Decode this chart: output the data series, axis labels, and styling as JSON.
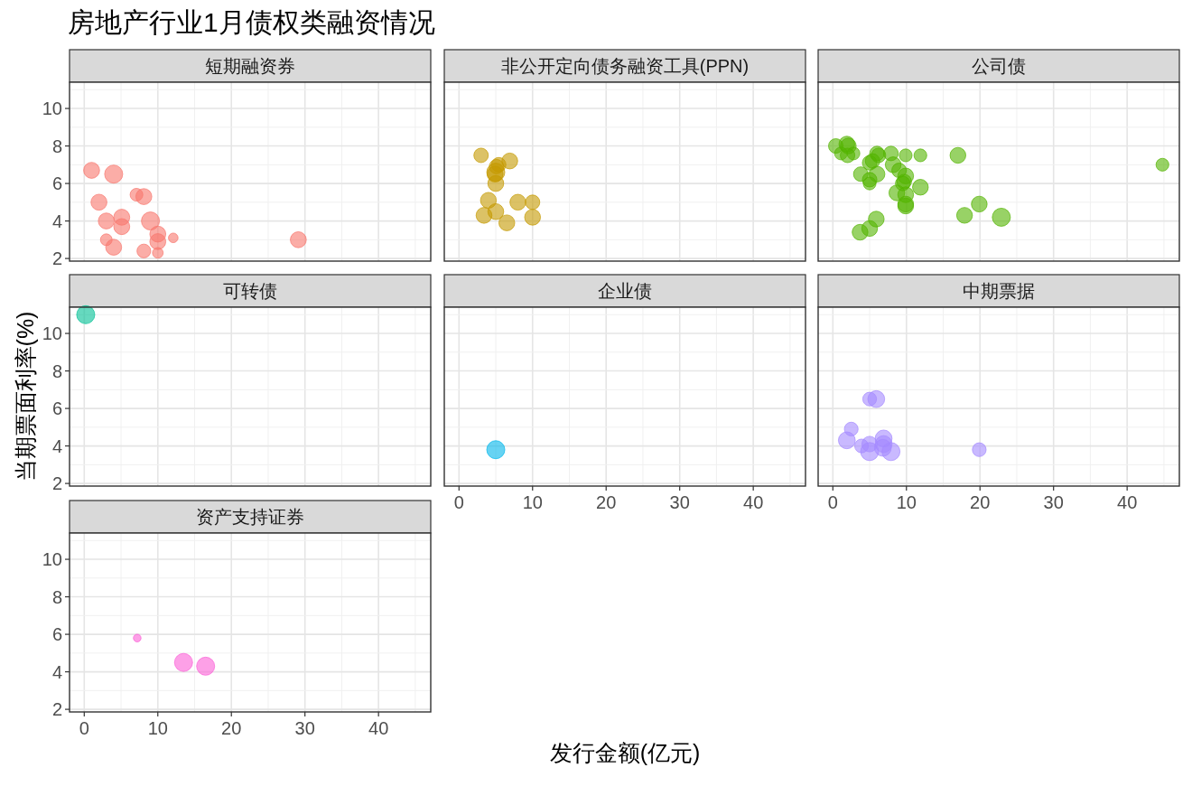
{
  "chart_data": [
    {
      "type": "bubble",
      "title": "房地产行业1月债权类融资情况",
      "subtitle": "短期融资券",
      "color": "#F8766D",
      "x": [
        1.0,
        4.0,
        2.0,
        7.1,
        8.1,
        3.0,
        5.1,
        5.1,
        9.0,
        3.0,
        4.0,
        8.1,
        10.0,
        10.0,
        10.0,
        12.1,
        29.1
      ],
      "values": [
        6.7,
        6.5,
        5.0,
        5.4,
        5.3,
        4.0,
        4.2,
        3.7,
        4.0,
        3.0,
        2.6,
        2.4,
        3.3,
        2.9,
        2.3,
        3.1,
        3.0
      ],
      "sizes": [
        0.78,
        1,
        0.78,
        0.5,
        0.78,
        0.78,
        0.78,
        0.78,
        1,
        0.42,
        0.78,
        0.58,
        0.78,
        0.78,
        0.35,
        0.28,
        0.78
      ],
      "xlim": [
        -2.0,
        47.1
      ],
      "ylim": [
        1.86,
        11.4
      ],
      "xticks": [
        0,
        10,
        20,
        30,
        40
      ],
      "yticks": [
        2,
        4,
        6,
        8,
        10
      ],
      "grid": true,
      "tick_labels": "y"
    },
    {
      "type": "bubble",
      "subtitle": "非公开定向债务融资工具(PPN)",
      "color": "#C49A00",
      "x": [
        3.0,
        6.9,
        5.4,
        5.1,
        5.0,
        4.9,
        5.0,
        4.0,
        8.0,
        10.0,
        3.4,
        5.0,
        6.5,
        10.0
      ],
      "values": [
        7.5,
        7.2,
        7.0,
        6.9,
        6.6,
        6.5,
        6.0,
        5.1,
        5.0,
        5.0,
        4.3,
        4.5,
        3.9,
        4.2
      ],
      "sizes": [
        0.64,
        0.77,
        0.64,
        0.64,
        1,
        0.77,
        0.77,
        0.77,
        0.77,
        0.64,
        0.77,
        0.77,
        0.77,
        0.77
      ],
      "xlim": [
        -2.0,
        47.1
      ],
      "ylim": [
        1.86,
        11.4
      ],
      "xticks": [
        0,
        10,
        20,
        30,
        40
      ],
      "yticks": [
        2,
        4,
        6,
        8,
        10
      ],
      "grid": true,
      "tick_labels": false
    },
    {
      "type": "bubble",
      "subtitle": "公司债",
      "color": "#53B400",
      "x": [
        0.4,
        1.9,
        2.1,
        1.1,
        2.0,
        2.8,
        6.2,
        6.0,
        7.9,
        9.9,
        11.9,
        17.0,
        44.8,
        5.0,
        5.4,
        8.2,
        9.0,
        3.8,
        6.0,
        5.0,
        5.0,
        9.9,
        9.7,
        9.5,
        11.9,
        8.7,
        9.9,
        9.9,
        9.9,
        5.9,
        19.9,
        17.9,
        22.9,
        3.7,
        5.0
      ],
      "values": [
        8.0,
        8.1,
        8.0,
        7.6,
        7.5,
        7.6,
        7.5,
        7.6,
        7.6,
        7.5,
        7.5,
        7.5,
        7.0,
        7.1,
        7.2,
        7.0,
        6.7,
        6.5,
        6.5,
        6.2,
        6.0,
        6.4,
        6.1,
        6.0,
        5.8,
        5.5,
        5.4,
        4.8,
        4.9,
        4.1,
        4.9,
        4.3,
        4.2,
        3.4,
        3.6
      ],
      "sizes": [
        0.65,
        0.76,
        0.76,
        0.5,
        0.65,
        0.5,
        0.65,
        0.65,
        0.65,
        0.5,
        0.5,
        0.76,
        0.5,
        0.65,
        0.65,
        0.76,
        0.65,
        0.65,
        0.76,
        0.65,
        0.5,
        0.76,
        0.65,
        0.65,
        0.76,
        0.76,
        0.76,
        0.76,
        0.76,
        0.76,
        0.76,
        0.76,
        1,
        0.76,
        0.76
      ],
      "xlim": [
        -2.0,
        47.1
      ],
      "ylim": [
        1.86,
        11.4
      ],
      "xticks": [
        0,
        10,
        20,
        30,
        40
      ],
      "yticks": [
        2,
        4,
        6,
        8,
        10
      ],
      "grid": true,
      "tick_labels": false
    },
    {
      "type": "bubble",
      "subtitle": "可转债",
      "ylabel": "当期票面利率(%)",
      "color": "#00C094",
      "x": [
        0.2
      ],
      "values": [
        11.0
      ],
      "sizes": [
        1
      ],
      "xlim": [
        -2.0,
        47.1
      ],
      "ylim": [
        1.86,
        11.4
      ],
      "xticks": [
        0,
        10,
        20,
        30,
        40
      ],
      "yticks": [
        2,
        4,
        6,
        8,
        10
      ],
      "grid": true,
      "tick_labels": "y"
    },
    {
      "type": "bubble",
      "subtitle": "企业债",
      "xlabel": "发行金额(亿元)",
      "color": "#00B6EB",
      "x": [
        5.0
      ],
      "values": [
        3.8
      ],
      "sizes": [
        1
      ],
      "xlim": [
        -2.0,
        47.1
      ],
      "ylim": [
        1.86,
        11.4
      ],
      "xticks": [
        0,
        10,
        20,
        30,
        40
      ],
      "yticks": [
        2,
        4,
        6,
        8,
        10
      ],
      "grid": true,
      "tick_labels": "x"
    },
    {
      "type": "bubble",
      "subtitle": "中期票据",
      "color": "#A58AFF",
      "x": [
        5.0,
        5.9,
        2.5,
        1.9,
        3.9,
        5.0,
        5.0,
        6.9,
        6.9,
        6.8,
        7.9,
        19.9
      ],
      "values": [
        6.5,
        6.5,
        4.9,
        4.3,
        4.0,
        4.1,
        3.7,
        4.4,
        4.1,
        3.9,
        3.7,
        3.8
      ],
      "sizes": [
        0.58,
        0.87,
        0.58,
        0.87,
        0.58,
        0.74,
        1,
        0.87,
        0.87,
        0.87,
        1,
        0.58
      ],
      "xlim": [
        -2.0,
        47.1
      ],
      "ylim": [
        1.86,
        11.4
      ],
      "xticks": [
        0,
        10,
        20,
        30,
        40
      ],
      "yticks": [
        2,
        4,
        6,
        8,
        10
      ],
      "grid": true,
      "tick_labels": "x"
    },
    {
      "type": "bubble",
      "subtitle": "资产支持证券",
      "color": "#FB61D7",
      "x": [
        7.2,
        13.5,
        16.5
      ],
      "values": [
        5.8,
        4.5,
        4.3
      ],
      "sizes": [
        0.18,
        1,
        1
      ],
      "xlim": [
        -2.0,
        47.1
      ],
      "ylim": [
        1.86,
        11.4
      ],
      "xticks": [
        0,
        10,
        20,
        30,
        40
      ],
      "yticks": [
        2,
        4,
        6,
        8,
        10
      ],
      "grid": true
    }
  ]
}
